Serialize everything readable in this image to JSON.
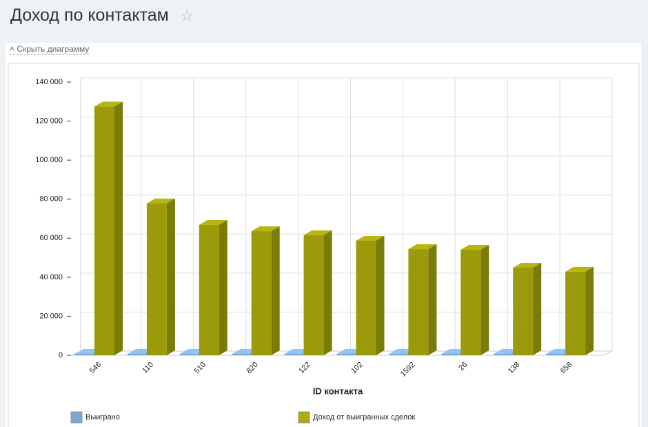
{
  "page": {
    "title": "Доход по контактам",
    "toggle": "Скрыть диаграмму"
  },
  "chart_data": {
    "type": "bar3d",
    "x_label": "ID контакта",
    "categories": [
      "546",
      "110",
      "510",
      "820",
      "122",
      "102",
      "1592",
      "26",
      "138",
      "658"
    ],
    "series": [
      {
        "name": "Выиграно",
        "color": "#7ba7d4",
        "values": [
          1,
          1,
          1,
          1,
          1,
          1,
          1,
          1,
          1,
          1
        ]
      },
      {
        "name": "Доход от выигранных сделок",
        "color": "#9a9a0a",
        "values": [
          127500,
          77800,
          66800,
          63600,
          61500,
          58700,
          54400,
          54100,
          44900,
          42800
        ]
      }
    ],
    "ylim": [
      0,
      140000
    ],
    "yticks": [
      {
        "value": 0,
        "label": "0"
      },
      {
        "value": 20000,
        "label": "20 000"
      },
      {
        "value": 40000,
        "label": "40 000"
      },
      {
        "value": 60000,
        "label": "60 000"
      },
      {
        "value": 80000,
        "label": "80 000"
      },
      {
        "value": 100000,
        "label": "100 000"
      },
      {
        "value": 120000,
        "label": "120 000"
      },
      {
        "value": 140000,
        "label": "140 000"
      }
    ],
    "grid": true
  }
}
